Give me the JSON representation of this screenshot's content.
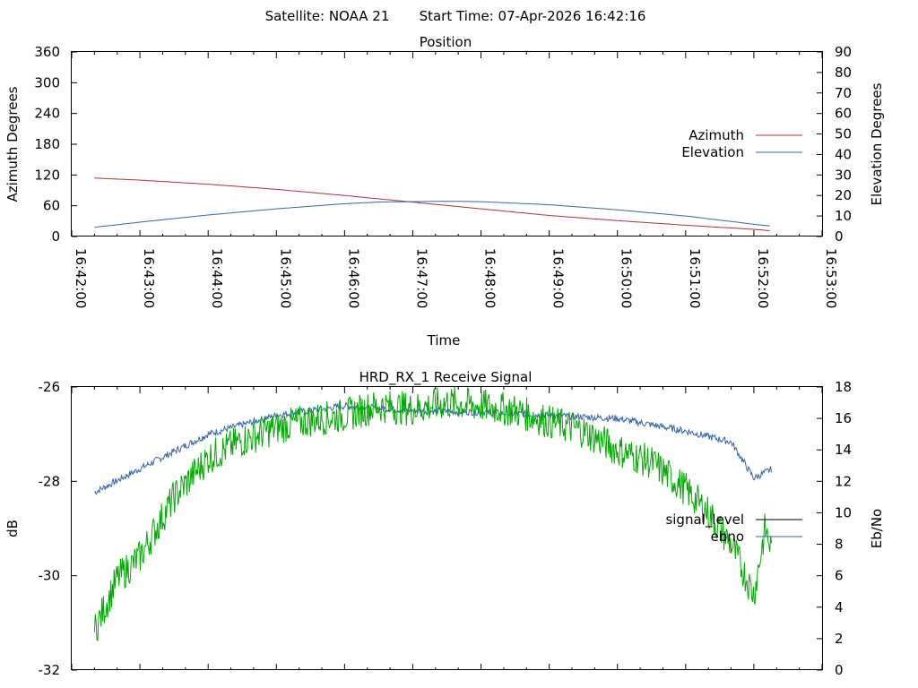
{
  "header": {
    "satellite_label": "Satellite: NOAA 21",
    "start_time_label": "Start Time: 07-Apr-2026 16:42:16"
  },
  "chart_data": [
    {
      "type": "line",
      "title": "Position",
      "xlabel": "Time",
      "ylabel": "Azimuth Degrees",
      "y2label": "Elevation Degrees",
      "xlim_minutes": [
        0,
        11
      ],
      "xticks": [
        "16:42:00",
        "16:43:00",
        "16:44:00",
        "16:45:00",
        "16:46:00",
        "16:47:00",
        "16:48:00",
        "16:49:00",
        "16:50:00",
        "16:51:00",
        "16:52:00",
        "16:53:00"
      ],
      "ylim": [
        0,
        360
      ],
      "yticks": [
        0,
        60,
        120,
        180,
        240,
        300,
        360
      ],
      "y2lim": [
        0,
        90
      ],
      "y2ticks": [
        0,
        10,
        20,
        30,
        40,
        50,
        60,
        70,
        80,
        90
      ],
      "legend_position": "right",
      "series": [
        {
          "name": "Azimuth",
          "axis": "y",
          "color": "#aa3333",
          "x": [
            "16:42:20",
            "16:43:00",
            "16:44:00",
            "16:45:00",
            "16:46:00",
            "16:47:00",
            "16:48:00",
            "16:49:00",
            "16:50:00",
            "16:51:00",
            "16:52:00",
            "16:52:16"
          ],
          "values": [
            114,
            110,
            102,
            92,
            80,
            67,
            54,
            41,
            31,
            22,
            14,
            11
          ]
        },
        {
          "name": "Elevation",
          "axis": "y2",
          "color": "#3366aa",
          "x": [
            "16:42:20",
            "16:43:00",
            "16:44:00",
            "16:45:00",
            "16:46:00",
            "16:46:30",
            "16:47:00",
            "16:47:30",
            "16:48:00",
            "16:49:00",
            "16:50:00",
            "16:51:00",
            "16:52:00",
            "16:52:16"
          ],
          "values": [
            4.5,
            7,
            10.5,
            13.5,
            16,
            16.8,
            17,
            17.2,
            17,
            15.5,
            13,
            10,
            6,
            5
          ]
        }
      ]
    },
    {
      "type": "line",
      "title": "HRD_RX_1 Receive Signal",
      "ylabel": "dB",
      "y2label": "Eb/No",
      "ylim": [
        -32,
        -26
      ],
      "yticks": [
        -32,
        -30,
        -28,
        -26
      ],
      "y2lim": [
        0,
        18
      ],
      "y2ticks": [
        0,
        2,
        4,
        6,
        8,
        10,
        12,
        14,
        16,
        18
      ],
      "legend_position": "right",
      "series": [
        {
          "name": "signal_level",
          "axis": "y",
          "color": "#000000",
          "values": []
        },
        {
          "name": "ebno",
          "axis": "y2",
          "color": "#3366aa",
          "x": [
            "16:42:20",
            "16:43:00",
            "16:44:00",
            "16:45:00",
            "16:46:00",
            "16:47:00",
            "16:48:00",
            "16:49:00",
            "16:50:00",
            "16:51:00",
            "16:51:40",
            "16:52:00",
            "16:52:16"
          ],
          "values": [
            11.3,
            12.8,
            15,
            16.2,
            16.8,
            16.5,
            16.4,
            16.2,
            16.0,
            15.2,
            14.5,
            12.2,
            12.8
          ]
        },
        {
          "name": "",
          "axis": "y2",
          "color": "#00aa00",
          "x": [
            "16:42:20",
            "16:42:40",
            "16:43:00",
            "16:43:30",
            "16:44:00",
            "16:44:30",
            "16:45:00",
            "16:45:30",
            "16:46:00",
            "16:46:30",
            "16:47:00",
            "16:47:30",
            "16:48:00",
            "16:48:30",
            "16:49:00",
            "16:49:30",
            "16:50:00",
            "16:50:30",
            "16:51:00",
            "16:51:20",
            "16:51:40",
            "16:52:00",
            "16:52:10",
            "16:52:16"
          ],
          "values": [
            2.5,
            5.8,
            7.2,
            11,
            13.5,
            14.6,
            15.4,
            15.9,
            16.2,
            16.8,
            16.6,
            17.0,
            16.8,
            16.5,
            15.8,
            15.2,
            14.0,
            13.2,
            11.5,
            10.0,
            8.0,
            4.8,
            9.0,
            7.5
          ]
        }
      ]
    }
  ]
}
